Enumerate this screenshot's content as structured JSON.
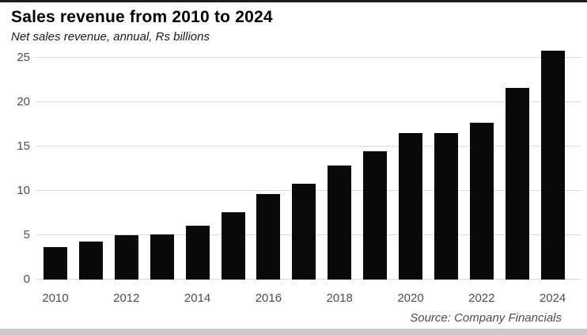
{
  "header": {
    "title": "Sales revenue from 2010 to 2024",
    "subtitle": "Net sales revenue, annual, Rs billions"
  },
  "footer": {
    "source": "Source: Company Financials"
  },
  "colors": {
    "bar": "#0a0a0a",
    "gridline": "#d9d9d9",
    "axis_text": "#4d4d4d",
    "top_rule": "#1c1c1c",
    "bottom_strip": "#cbcbcb",
    "background": "#ffffff"
  },
  "chart_data": {
    "type": "bar",
    "title": "Sales revenue from 2010 to 2024",
    "subtitle": "Net sales revenue, annual, Rs billions",
    "source": "Source: Company Financials",
    "categories": [
      "2010",
      "2011",
      "2012",
      "2013",
      "2014",
      "2015",
      "2016",
      "2017",
      "2018",
      "2019",
      "2020",
      "2021",
      "2022",
      "2023",
      "2024"
    ],
    "values": [
      3.7,
      4.3,
      5.0,
      5.1,
      6.1,
      7.6,
      9.6,
      10.8,
      12.9,
      14.5,
      16.5,
      16.5,
      17.7,
      21.6,
      25.8
    ],
    "xlabel": "",
    "ylabel": "Rs billions",
    "ylim": [
      0,
      25
    ],
    "yticks": [
      0,
      5,
      10,
      15,
      20,
      25
    ],
    "xticks_shown": [
      "2010",
      "2012",
      "2014",
      "2016",
      "2018",
      "2020",
      "2022",
      "2024"
    ],
    "grid": true,
    "legend": false,
    "bar_color": "#0a0a0a"
  }
}
